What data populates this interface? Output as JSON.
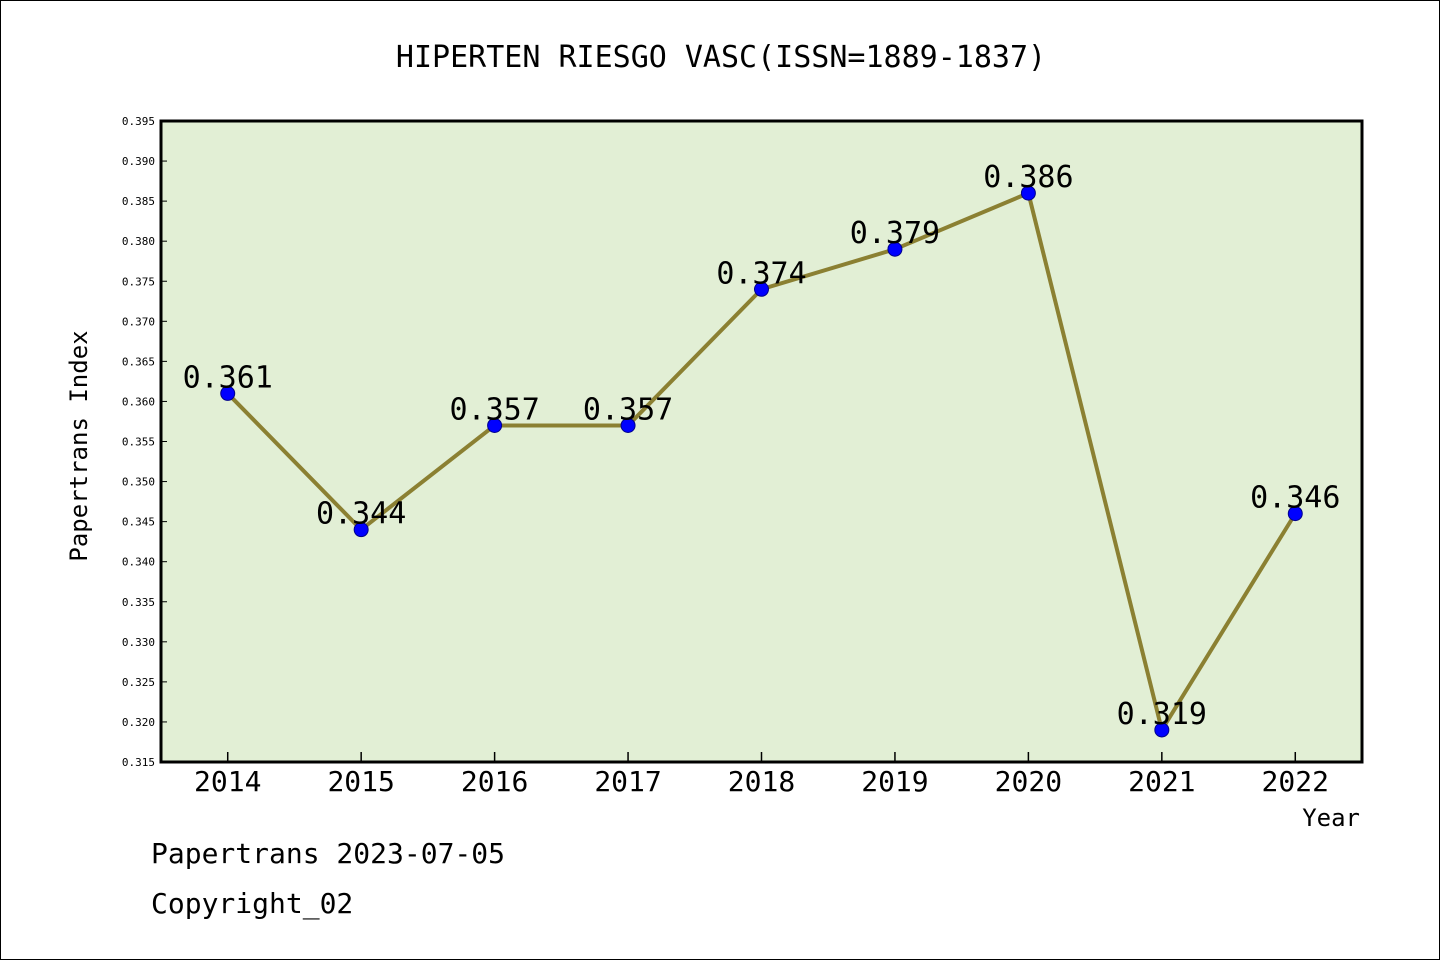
{
  "chart_data": {
    "type": "line",
    "title": "HIPERTEN RIESGO VASC(ISSN=1889-1837)",
    "xlabel": "Year",
    "ylabel": "Papertrans Index",
    "x": [
      "2014",
      "2015",
      "2016",
      "2017",
      "2018",
      "2019",
      "2020",
      "2021",
      "2022"
    ],
    "series": [
      {
        "values": [
          0.361,
          0.344,
          0.357,
          0.357,
          0.374,
          0.379,
          0.386,
          0.319,
          0.346
        ],
        "line_color": "#8B8032",
        "marker_color": "#0000FF"
      }
    ],
    "data_labels": [
      "0.361",
      "0.344",
      "0.357",
      "0.357",
      "0.374",
      "0.379",
      "0.386",
      "0.319",
      "0.346"
    ],
    "ylim": [
      0.315,
      0.395
    ],
    "yticks": [
      "0.315",
      "0.320",
      "0.325",
      "0.330",
      "0.335",
      "0.340",
      "0.345",
      "0.350",
      "0.355",
      "0.360",
      "0.365",
      "0.370",
      "0.375",
      "0.380",
      "0.385",
      "0.390",
      "0.395"
    ],
    "plot_background": "#E2EFD5",
    "grid": false,
    "legend": "none"
  },
  "footer": {
    "date_line": "Papertrans 2023-07-05",
    "copyright_line": "Copyright_02"
  }
}
